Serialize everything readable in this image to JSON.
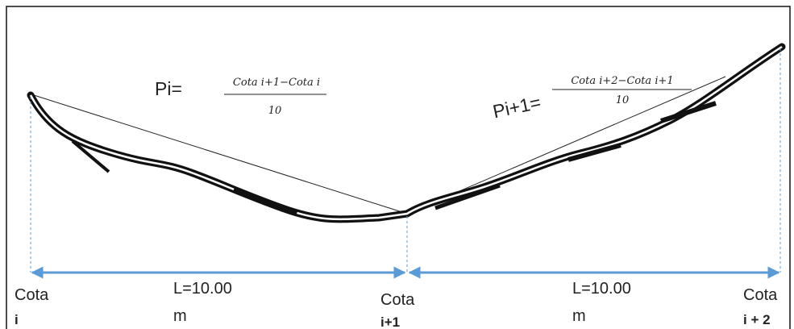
{
  "formulas": [
    {
      "lhs": "Pi=",
      "numerator": "Cota i+1−Cota i",
      "denominator": "10"
    },
    {
      "lhs": "Pi+1=",
      "numerator": "Cota i+2−Cota i+1",
      "denominator": "10"
    }
  ],
  "points": [
    {
      "label": "Cota",
      "index": "i"
    },
    {
      "label": "Cota",
      "index": "i+1"
    },
    {
      "label": "Cota",
      "index": "i + 2"
    }
  ],
  "spans": [
    {
      "length": "L=10.00",
      "unit": "m"
    },
    {
      "length": "L=10.00",
      "unit": "m"
    }
  ]
}
